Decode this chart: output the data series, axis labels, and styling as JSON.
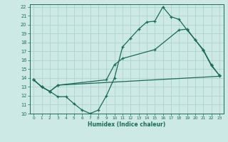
{
  "xlabel": "Humidex (Indice chaleur)",
  "xlim": [
    -0.5,
    23.5
  ],
  "ylim": [
    10,
    22.3
  ],
  "xticks": [
    0,
    1,
    2,
    3,
    4,
    5,
    6,
    7,
    8,
    9,
    10,
    11,
    12,
    13,
    14,
    15,
    16,
    17,
    18,
    19,
    20,
    21,
    22,
    23
  ],
  "yticks": [
    10,
    11,
    12,
    13,
    14,
    15,
    16,
    17,
    18,
    19,
    20,
    21,
    22
  ],
  "background_color": "#cce9e5",
  "line_color": "#1a6b5a",
  "grid_color": "#aacfca",
  "line1_x": [
    0,
    1,
    2,
    3,
    4,
    5,
    6,
    7,
    8,
    9,
    10,
    11,
    12,
    13,
    14,
    15,
    16,
    17,
    18,
    19,
    20,
    21,
    22,
    23
  ],
  "line1_y": [
    13.8,
    13.0,
    12.5,
    11.9,
    11.9,
    11.1,
    10.4,
    10.0,
    10.4,
    12.0,
    14.0,
    17.5,
    18.5,
    19.5,
    20.3,
    20.4,
    22.0,
    20.9,
    20.6,
    19.4,
    18.3,
    17.1,
    15.4,
    14.3
  ],
  "line2_x": [
    0,
    1,
    2,
    3,
    9,
    10,
    11,
    15,
    18,
    19,
    20,
    21,
    22,
    23
  ],
  "line2_y": [
    13.8,
    13.0,
    12.5,
    13.2,
    13.8,
    15.5,
    16.2,
    17.2,
    19.4,
    19.5,
    18.3,
    17.2,
    15.5,
    14.3
  ],
  "line3_x": [
    0,
    1,
    2,
    3,
    23
  ],
  "line3_y": [
    13.8,
    13.0,
    12.5,
    13.2,
    14.2
  ]
}
